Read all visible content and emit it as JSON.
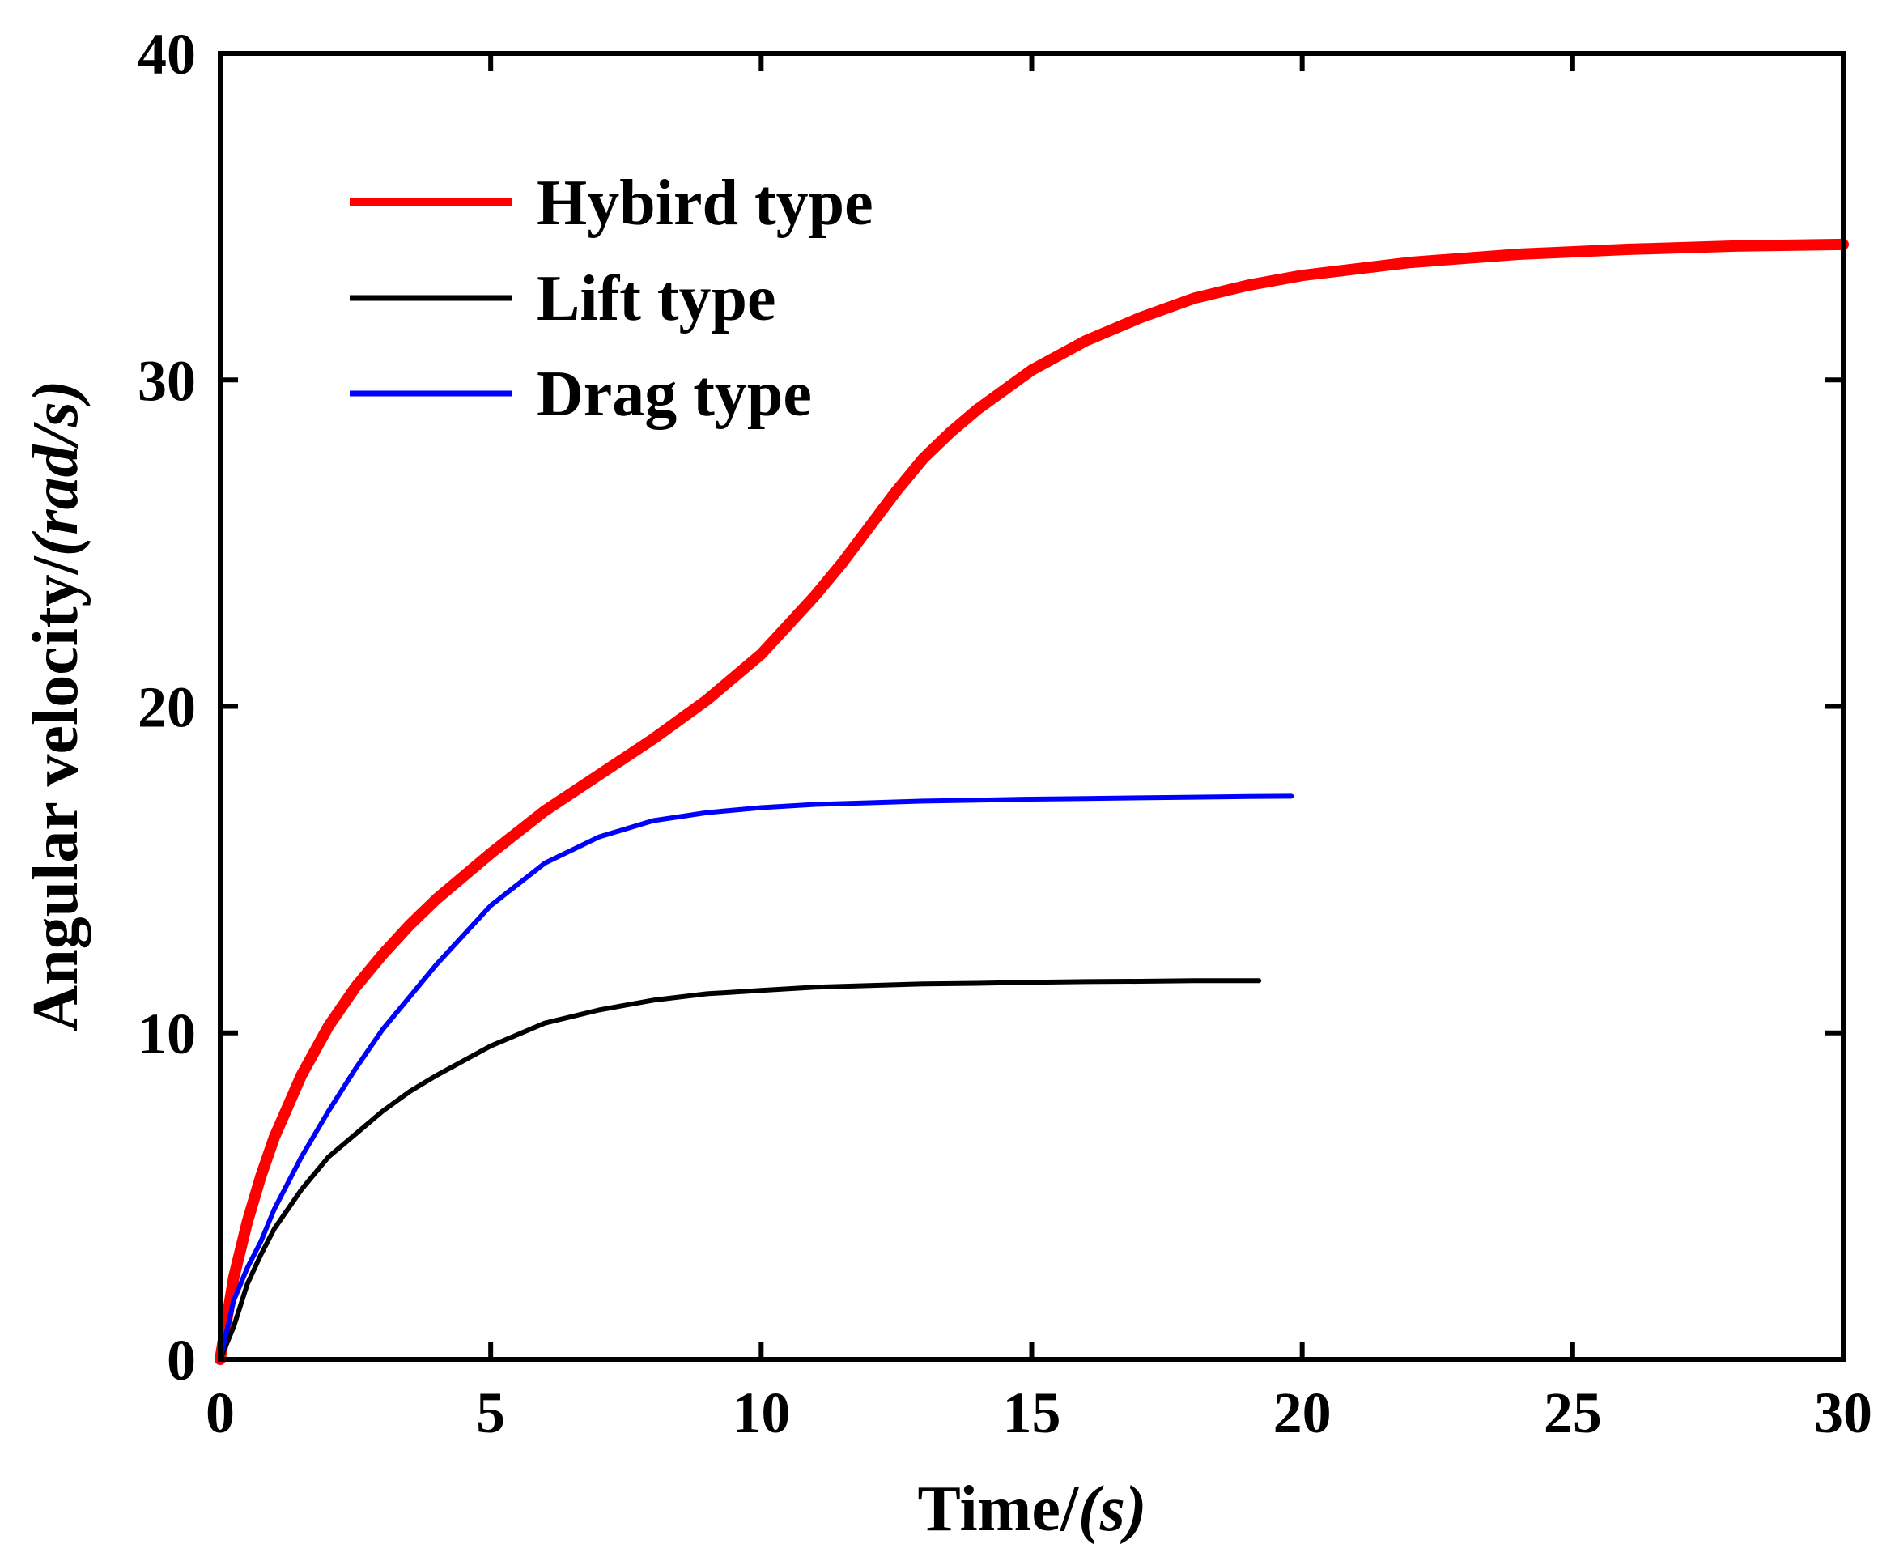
{
  "chart_data": {
    "type": "line",
    "title": "",
    "xlabel": "Time/",
    "xlabel_unit": "(s)",
    "ylabel": "Angular velocity/",
    "ylabel_unit": "(rad/s)",
    "xlim": [
      0,
      30
    ],
    "ylim": [
      0,
      40
    ],
    "xticks": [
      0,
      5,
      10,
      15,
      20,
      25,
      30
    ],
    "yticks": [
      0,
      10,
      20,
      30,
      40
    ],
    "grid": false,
    "legend_position": "top-left",
    "series": [
      {
        "name": "Hybird type",
        "color": "#ff0000",
        "x": [
          0,
          0.25,
          0.5,
          0.75,
          1,
          1.5,
          2,
          2.5,
          3,
          3.5,
          4,
          5,
          6,
          7,
          8,
          9,
          10,
          10.5,
          11,
          11.5,
          12,
          12.5,
          13,
          13.5,
          14,
          15,
          16,
          17,
          18,
          19,
          20,
          22,
          24,
          26,
          28,
          30
        ],
        "y": [
          0,
          2.5,
          4.2,
          5.6,
          6.8,
          8.7,
          10.2,
          11.4,
          12.4,
          13.3,
          14.1,
          15.5,
          16.8,
          17.9,
          19.0,
          20.2,
          21.6,
          22.5,
          23.4,
          24.4,
          25.5,
          26.6,
          27.6,
          28.4,
          29.1,
          30.3,
          31.2,
          31.9,
          32.5,
          32.9,
          33.2,
          33.6,
          33.85,
          34.0,
          34.1,
          34.15
        ]
      },
      {
        "name": "Lift type",
        "color": "#000000",
        "x": [
          0,
          0.25,
          0.5,
          0.75,
          1,
          1.5,
          2,
          2.5,
          3,
          3.5,
          4,
          5,
          6,
          7,
          8,
          9,
          10,
          11,
          12,
          13,
          14,
          15,
          16,
          17,
          18,
          19.2
        ],
        "y": [
          0,
          1.0,
          2.3,
          3.2,
          4.0,
          5.2,
          6.2,
          6.9,
          7.6,
          8.2,
          8.7,
          9.6,
          10.3,
          10.7,
          11.0,
          11.2,
          11.3,
          11.4,
          11.45,
          11.5,
          11.52,
          11.55,
          11.57,
          11.58,
          11.6,
          11.6
        ]
      },
      {
        "name": "Drag type",
        "color": "#0000ff",
        "x": [
          0,
          0.25,
          0.5,
          0.75,
          1,
          1.5,
          2,
          2.5,
          3,
          3.5,
          4,
          5,
          6,
          7,
          8,
          9,
          10,
          11,
          12,
          13,
          14,
          15,
          16,
          17,
          18,
          19,
          19.8
        ],
        "y": [
          0,
          1.8,
          2.8,
          3.6,
          4.6,
          6.2,
          7.6,
          8.9,
          10.1,
          11.1,
          12.1,
          13.9,
          15.2,
          16.0,
          16.5,
          16.75,
          16.9,
          17.0,
          17.05,
          17.1,
          17.13,
          17.16,
          17.18,
          17.2,
          17.22,
          17.24,
          17.25
        ]
      }
    ]
  }
}
